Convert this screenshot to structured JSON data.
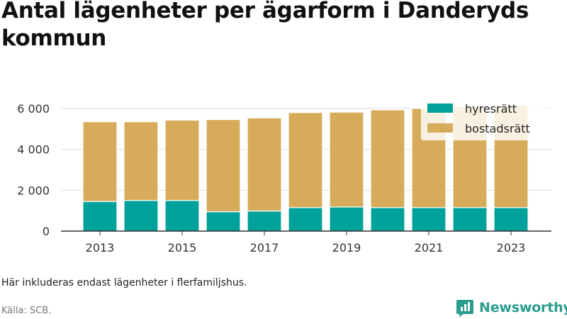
{
  "title": "Antal lägenheter per ägarform i Danderyds kommun",
  "note": "Här inkluderas endast lägenheter i flerfamiljshus.",
  "source": "Källa: SCB.",
  "brand": "Newsworthy",
  "colors": {
    "hyresratt": "#00a19a",
    "bostadsratt": "#d6ac5b",
    "brand": "#2a9d8f",
    "grid": "#dddddd",
    "axis": "#333333"
  },
  "chart_data": {
    "type": "bar",
    "stacked": true,
    "categories": [
      "2013",
      "2014",
      "2015",
      "2016",
      "2017",
      "2018",
      "2019",
      "2020",
      "2021",
      "2022",
      "2023"
    ],
    "series": [
      {
        "name": "hyresrätt",
        "values": [
          1450,
          1500,
          1500,
          950,
          980,
          1150,
          1180,
          1150,
          1150,
          1150,
          1150
        ]
      },
      {
        "name": "bostadsrätt",
        "values": [
          3900,
          3850,
          3930,
          4510,
          4560,
          4650,
          4640,
          4780,
          4850,
          4950,
          5000
        ]
      }
    ],
    "x_tick_labels": [
      "2013",
      "2015",
      "2017",
      "2019",
      "2021",
      "2023"
    ],
    "y_ticks": [
      0,
      2000,
      4000,
      6000
    ],
    "y_tick_labels": [
      "0",
      "2 000",
      "4 000",
      "6 000"
    ],
    "ylim": [
      0,
      6000
    ],
    "grid": true,
    "legend_position": "top-right"
  }
}
